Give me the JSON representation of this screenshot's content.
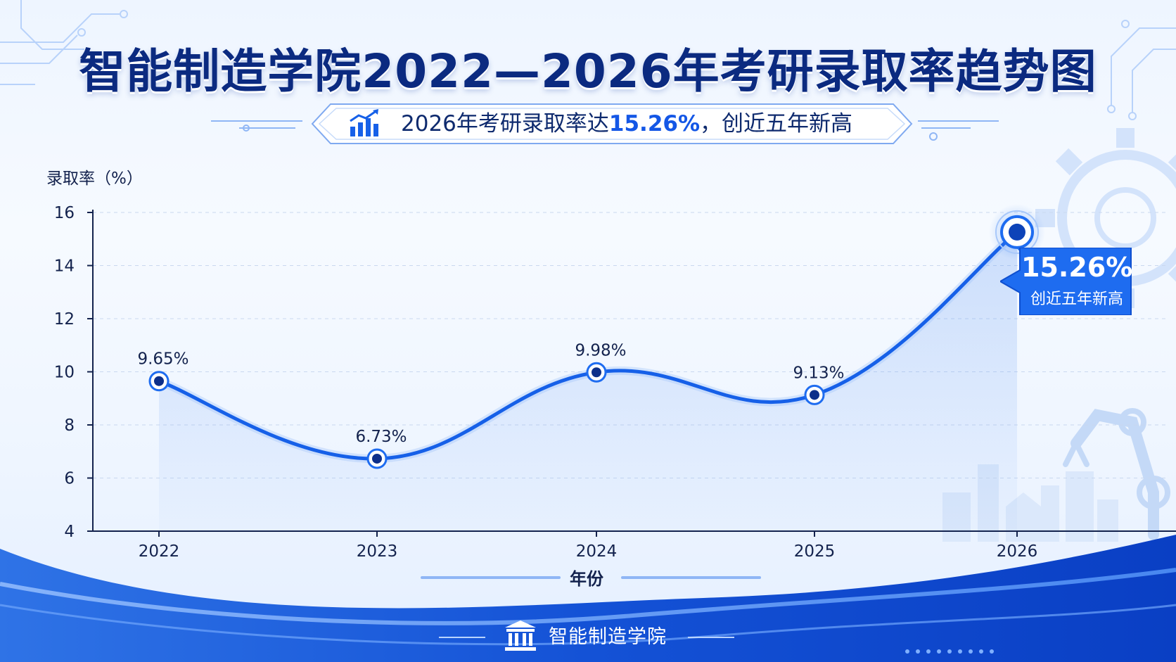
{
  "title": "智能制造学院2022—2026年考研录取率趋势图",
  "subtitle": {
    "prefix": "2026年考研录取率达",
    "highlight": "15.26%",
    "suffix": "，创近五年新高"
  },
  "callout": {
    "value": "15.26%",
    "note": "创近五年新高"
  },
  "footer": {
    "name": "智能制造学院"
  },
  "icons": {
    "subtitle": "bar-chart-trend-icon",
    "footer": "university-building-icon",
    "background": [
      "circuit-lines-icon",
      "gear-icon",
      "robot-arm-icon",
      "factory-skyline-icon"
    ]
  },
  "colors": {
    "line": "#1660e8",
    "title": "#0b2a80",
    "highlight": "#1457e6",
    "callout_bg": "#1e6cf0",
    "footer_wave": "#0a3fc4"
  },
  "chart_data": {
    "type": "line",
    "x": [
      "2022",
      "2023",
      "2024",
      "2025",
      "2026"
    ],
    "values": [
      9.65,
      6.73,
      9.98,
      9.13,
      15.26
    ],
    "data_labels": [
      "9.65%",
      "6.73%",
      "9.98%",
      "9.13%",
      ""
    ],
    "ylabel": "录取率（%）",
    "xlabel": "年份",
    "ylim": [
      4,
      16
    ],
    "yticks": [
      4,
      6,
      8,
      10,
      12,
      14,
      16
    ],
    "grid": true,
    "area_fill": true,
    "highlight_point": "2026"
  }
}
